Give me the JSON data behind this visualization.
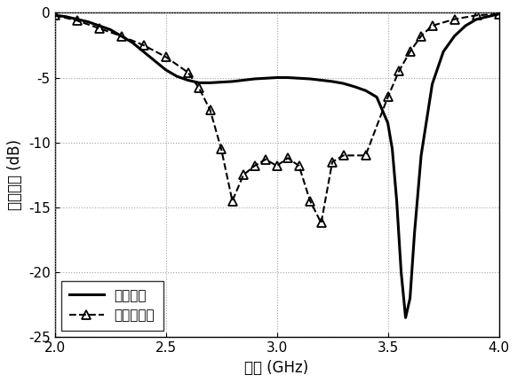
{
  "xlim": [
    2.0,
    4.0
  ],
  "ylim": [
    -25,
    0
  ],
  "xticks": [
    2.0,
    2.5,
    3.0,
    3.5,
    4.0
  ],
  "yticks": [
    0,
    -5,
    -10,
    -15,
    -20,
    -25
  ],
  "xlabel": "频率 (GHz)",
  "ylabel": "反射系数 (dB)",
  "legend1": "传统天线",
  "legend2": "本发明天线",
  "solid_x": [
    2.0,
    2.05,
    2.1,
    2.15,
    2.2,
    2.25,
    2.3,
    2.35,
    2.4,
    2.45,
    2.5,
    2.55,
    2.6,
    2.65,
    2.7,
    2.75,
    2.8,
    2.85,
    2.9,
    2.95,
    3.0,
    3.05,
    3.1,
    3.15,
    3.2,
    3.25,
    3.3,
    3.35,
    3.4,
    3.45,
    3.5,
    3.52,
    3.54,
    3.56,
    3.58,
    3.6,
    3.62,
    3.65,
    3.7,
    3.75,
    3.8,
    3.85,
    3.9,
    3.95,
    4.0
  ],
  "solid_y": [
    -0.2,
    -0.3,
    -0.5,
    -0.7,
    -1.0,
    -1.3,
    -1.8,
    -2.3,
    -3.0,
    -3.7,
    -4.4,
    -4.9,
    -5.2,
    -5.4,
    -5.4,
    -5.35,
    -5.3,
    -5.2,
    -5.1,
    -5.05,
    -5.0,
    -5.0,
    -5.05,
    -5.1,
    -5.2,
    -5.3,
    -5.45,
    -5.7,
    -6.0,
    -6.5,
    -8.5,
    -10.5,
    -14.5,
    -20.0,
    -23.5,
    -22.0,
    -17.0,
    -11.0,
    -5.5,
    -3.0,
    -1.8,
    -1.0,
    -0.5,
    -0.3,
    -0.1
  ],
  "dashed_x": [
    2.0,
    2.1,
    2.2,
    2.3,
    2.4,
    2.5,
    2.6,
    2.65,
    2.7,
    2.75,
    2.8,
    2.85,
    2.9,
    2.95,
    3.0,
    3.05,
    3.1,
    3.15,
    3.2,
    3.25,
    3.3,
    3.4,
    3.5,
    3.55,
    3.6,
    3.65,
    3.7,
    3.8,
    3.9,
    4.0
  ],
  "dashed_y": [
    -0.2,
    -0.6,
    -1.2,
    -1.8,
    -2.5,
    -3.4,
    -4.6,
    -5.8,
    -7.5,
    -10.5,
    -14.5,
    -12.5,
    -11.8,
    -11.3,
    -11.8,
    -11.2,
    -11.8,
    -14.5,
    -16.2,
    -11.5,
    -11.0,
    -11.0,
    -6.5,
    -4.5,
    -3.0,
    -1.8,
    -1.0,
    -0.5,
    -0.2,
    -0.1
  ],
  "bg_color": "#f0f0f0",
  "line_color": "#000000",
  "grid_color": "#999999"
}
